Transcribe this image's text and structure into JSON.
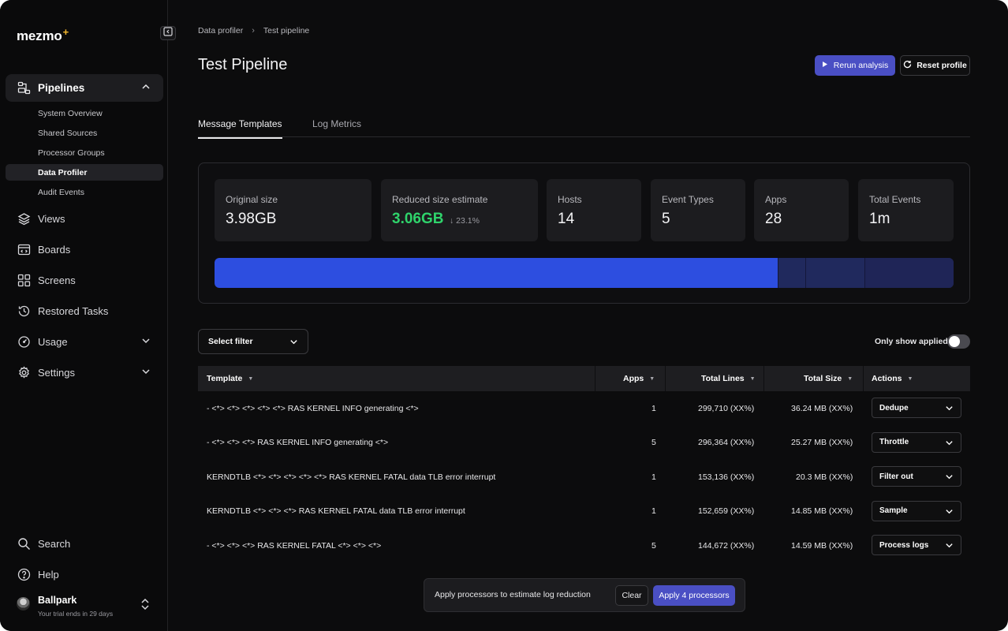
{
  "app": {
    "logo_text": "mezmo",
    "logo_mark": "+"
  },
  "sidebar": {
    "pipelines_label": "Pipelines",
    "pipelines_sub": [
      {
        "label": "System Overview"
      },
      {
        "label": "Shared Sources"
      },
      {
        "label": "Processor Groups"
      },
      {
        "label": "Data Profiler"
      },
      {
        "label": "Audit Events"
      }
    ],
    "active_sub": "Data Profiler",
    "items": [
      {
        "label": "Views",
        "icon": "layers-icon"
      },
      {
        "label": "Boards",
        "icon": "board-icon"
      },
      {
        "label": "Screens",
        "icon": "grid-icon"
      },
      {
        "label": "Restored Tasks",
        "icon": "history-icon"
      },
      {
        "label": "Usage",
        "icon": "gauge-icon"
      },
      {
        "label": "Settings",
        "icon": "gear-icon"
      }
    ],
    "search_label": "Search",
    "help_label": "Help",
    "user": {
      "name": "Ballpark",
      "subtitle": "Your trial ends in 29 days"
    }
  },
  "breadcrumb": {
    "items": [
      "Data profiler",
      "Test pipeline"
    ],
    "separator": "›"
  },
  "page": {
    "title": "Test Pipeline",
    "rerun_label": "Rerun analysis",
    "reset_label": "Reset profile"
  },
  "tabs": {
    "items": [
      "Message Templates",
      "Log Metrics"
    ],
    "active": "Message Templates"
  },
  "stats": {
    "original": {
      "label": "Original size",
      "value": "3.98GB"
    },
    "reduced": {
      "label": "Reduced size estimate",
      "value": "3.06GB",
      "delta": "↓ 23.1%"
    },
    "hosts": {
      "label": "Hosts",
      "value": "14"
    },
    "event_types": {
      "label": "Event Types",
      "value": "5"
    },
    "apps": {
      "label": "Apps",
      "value": "28"
    },
    "total_events": {
      "label": "Total Events",
      "value": "1m"
    },
    "reduction_bar": {
      "filled_fraction": 0.762
    },
    "colors": {
      "reduced_value": "#2fd36b",
      "bar_fill": "#2d4ee0",
      "bar_track": "#22264f"
    }
  },
  "filters": {
    "select_label": "Select filter",
    "only_applied_label": "Only show applied",
    "only_applied": false
  },
  "table": {
    "columns": [
      "Template",
      "Apps",
      "Total Lines",
      "Total Size",
      "Actions"
    ],
    "rows": [
      {
        "template": "- <*> <*> <*> <*> <*> RAS KERNEL INFO generating <*>",
        "apps": "1",
        "lines": "299,710 (XX%)",
        "size": "36.24 MB (XX%)",
        "action": "Dedupe"
      },
      {
        "template": "- <*> <*> <*> RAS KERNEL INFO generating <*>",
        "apps": "5",
        "lines": "296,364 (XX%)",
        "size": "25.27 MB (XX%)",
        "action": "Throttle"
      },
      {
        "template": "KERNDTLB <*> <*> <*> <*> <*> RAS KERNEL FATAL data TLB error interrupt",
        "apps": "1",
        "lines": "153,136 (XX%)",
        "size": "20.3 MB (XX%)",
        "action": "Filter out"
      },
      {
        "template": "KERNDTLB <*> <*> <*> RAS KERNEL FATAL data TLB error interrupt",
        "apps": "1",
        "lines": "152,659 (XX%)",
        "size": "14.85 MB (XX%)",
        "action": "Sample"
      },
      {
        "template": "- <*> <*> <*> RAS KERNEL FATAL <*> <*> <*>",
        "apps": "5",
        "lines": "144,672 (XX%)",
        "size": "14.59 MB (XX%)",
        "action": "Process logs"
      }
    ]
  },
  "bottom_bar": {
    "message": "Apply processors to estimate log reduction",
    "clear_label": "Clear",
    "apply_label": "Apply 4 processors"
  },
  "colors": {
    "accent": "#4a4fc4",
    "background": "#0c0c0d"
  }
}
